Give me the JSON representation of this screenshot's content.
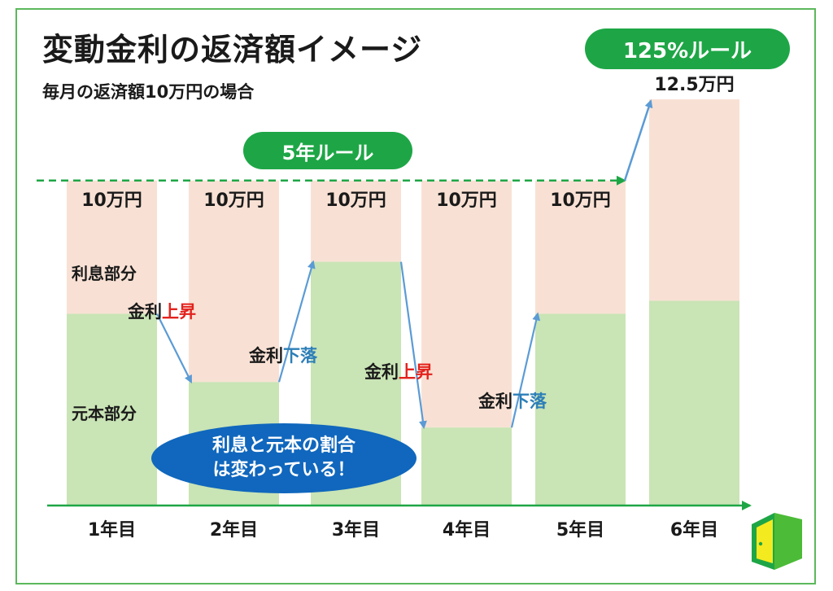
{
  "title": "変動金利の返済額イメージ",
  "subtitle": "毎月の返済額10万円の場合",
  "badges": {
    "rule_125": "125%ルール",
    "rule_5": "5年ルール",
    "ratio_line1": "利息と元本の割合",
    "ratio_line2": "は変わっている！"
  },
  "part_labels": {
    "interest": "利息部分",
    "principal": "元本部分"
  },
  "rate_changes": [
    {
      "prefix": "金利",
      "word": "上昇",
      "direction": "up"
    },
    {
      "prefix": "金利",
      "word": "下落",
      "direction": "down"
    },
    {
      "prefix": "金利",
      "word": "上昇",
      "direction": "up"
    },
    {
      "prefix": "金利",
      "word": "下落",
      "direction": "down"
    }
  ],
  "colors": {
    "interest": "#f8e1d4",
    "principal": "#c9e4b5",
    "accent_green": "#1ea646",
    "accent_blue": "#1067bd",
    "arrow": "#5b9bd5",
    "rise": "#e3221d",
    "fall": "#2d7fb8",
    "frame": "#5cb85c"
  },
  "chart_data": {
    "type": "bar",
    "stacked": true,
    "categories": [
      "1年目",
      "2年目",
      "3年目",
      "4年目",
      "5年目",
      "6年目"
    ],
    "totals": [
      10,
      10,
      10,
      10,
      10,
      12.5
    ],
    "total_labels": [
      "10万円",
      "10万円",
      "10万円",
      "10万円",
      "10万円",
      "12.5万円"
    ],
    "series": [
      {
        "name": "元本部分",
        "values": [
          5.9,
          3.8,
          7.5,
          2.4,
          5.9,
          6.3
        ]
      },
      {
        "name": "利息部分",
        "values": [
          4.1,
          6.2,
          2.5,
          7.6,
          4.1,
          6.2
        ]
      }
    ],
    "reference_line": 10,
    "ylim": [
      0,
      12.5
    ]
  }
}
